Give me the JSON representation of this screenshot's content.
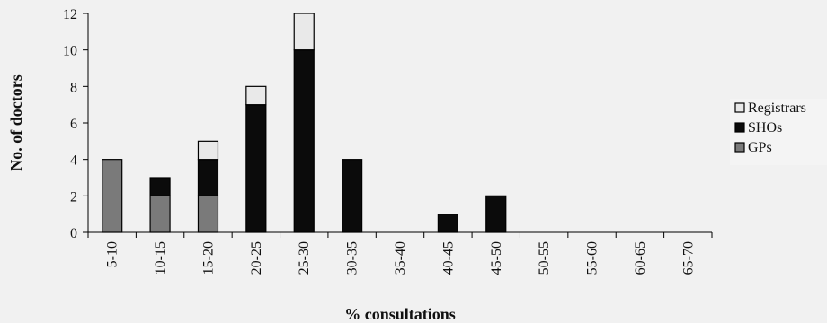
{
  "chart_data": {
    "type": "bar",
    "stacked": true,
    "title": "",
    "xlabel": "% consultations",
    "ylabel": "No. of doctors",
    "ylim": [
      0,
      12
    ],
    "yticks": [
      0,
      2,
      4,
      6,
      8,
      10,
      12
    ],
    "categories": [
      "5-10",
      "10-15",
      "15-20",
      "20-25",
      "25-30",
      "30-35",
      "35-40",
      "40-45",
      "45-50",
      "50-55",
      "55-60",
      "60-65",
      "65-70"
    ],
    "series": [
      {
        "name": "GPs",
        "color": "#7a7a7a",
        "values": [
          4,
          2,
          2,
          0,
          0,
          0,
          0,
          0,
          0,
          0,
          0,
          0,
          0
        ]
      },
      {
        "name": "SHOs",
        "color": "#0b0b0b",
        "values": [
          0,
          1,
          2,
          7,
          10,
          4,
          0,
          1,
          2,
          0,
          0,
          0,
          0
        ]
      },
      {
        "name": "Registrars",
        "color": "#e9e9e9",
        "values": [
          0,
          0,
          1,
          1,
          2,
          0,
          0,
          0,
          0,
          0,
          0,
          0,
          0
        ]
      }
    ],
    "legend": {
      "position": "right",
      "order": [
        "Registrars",
        "SHOs",
        "GPs"
      ]
    },
    "grid": false
  }
}
